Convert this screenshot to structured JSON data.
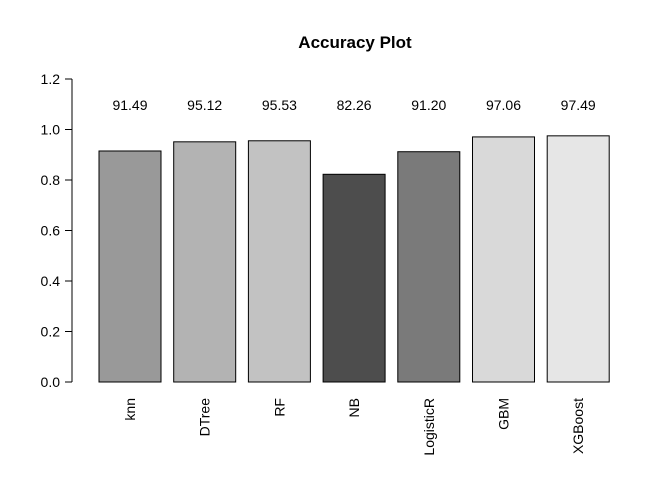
{
  "chart_data": {
    "type": "bar",
    "title": "Accuracy Plot",
    "xlabel": "",
    "ylabel": "",
    "categories": [
      "knn",
      "DTree",
      "RF",
      "NB",
      "LogisticR",
      "GBM",
      "XGBoost"
    ],
    "values": [
      0.9149,
      0.9512,
      0.9553,
      0.8226,
      0.912,
      0.9706,
      0.9749
    ],
    "value_labels": [
      "91.49",
      "95.12",
      "95.53",
      "82.26",
      "91.20",
      "97.06",
      "97.49"
    ],
    "bar_colors": [
      "#999999",
      "#B3B3B3",
      "#C2C2C2",
      "#4D4D4D",
      "#7A7A7A",
      "#D9D9D9",
      "#E6E6E6"
    ],
    "bar_border_color": "#000000",
    "ylim": [
      0,
      1.2
    ],
    "yticks": [
      0.0,
      0.2,
      0.4,
      0.6,
      0.8,
      1.0,
      1.2
    ],
    "ytick_labels": [
      "0.0",
      "0.2",
      "0.4",
      "0.6",
      "0.8",
      "1.0",
      "1.2"
    ],
    "grid": false,
    "legend": "none"
  }
}
